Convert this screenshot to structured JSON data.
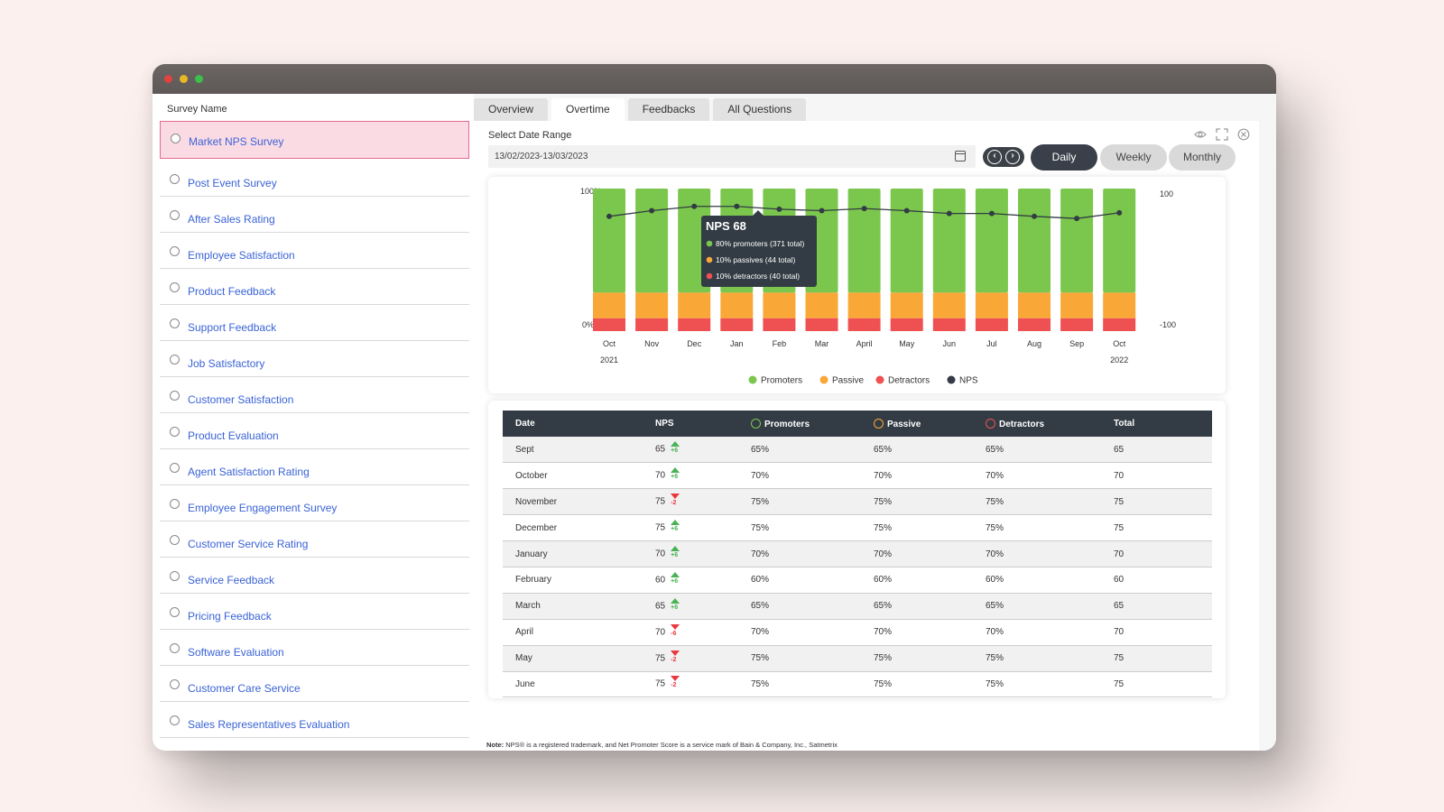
{
  "sidebar": {
    "title": "Survey Name",
    "items": [
      {
        "label": "Market NPS Survey"
      },
      {
        "label": "Post Event Survey"
      },
      {
        "label": "After Sales Rating"
      },
      {
        "label": "Employee Satisfaction"
      },
      {
        "label": "Product Feedback"
      },
      {
        "label": "Support Feedback"
      },
      {
        "label": "Job Satisfactory"
      },
      {
        "label": "Customer Satisfaction"
      },
      {
        "label": "Product Evaluation"
      },
      {
        "label": "Agent Satisfaction Rating"
      },
      {
        "label": "Employee Engagement Survey"
      },
      {
        "label": "Customer Service Rating"
      },
      {
        "label": "Service Feedback"
      },
      {
        "label": "Pricing Feedback"
      },
      {
        "label": "Software Evaluation"
      },
      {
        "label": "Customer Care Service"
      },
      {
        "label": "Sales Representatives Evaluation"
      }
    ]
  },
  "tabs": [
    {
      "label": "Overview"
    },
    {
      "label": "Overtime"
    },
    {
      "label": "Feedbacks"
    },
    {
      "label": "All Questions"
    }
  ],
  "date_range": {
    "label": "Select Date Range",
    "value": "13/02/2023-13/03/2023"
  },
  "periods": {
    "daily": "Daily",
    "weekly": "Weekly",
    "monthly": "Monthly"
  },
  "colors": {
    "promoters": "#7bc74d",
    "passive": "#f9a838",
    "detractors": "#ef5052",
    "nps": "#333c44",
    "accent_pink": "#fadbe4",
    "link_blue": "#3a63d6"
  },
  "chart_data": {
    "type": "bar",
    "stacked": true,
    "categories": [
      "Oct",
      "Nov",
      "Dec",
      "Jan",
      "Feb",
      "Mar",
      "April",
      "May",
      "Jun",
      "Jul",
      "Aug",
      "Sep",
      "Oct"
    ],
    "year_labels": [
      "2021",
      "2022"
    ],
    "series": [
      {
        "name": "Promoters",
        "values": [
          73,
          73,
          73,
          73,
          73,
          73,
          73,
          73,
          73,
          73,
          73,
          73,
          73
        ]
      },
      {
        "name": "Passive",
        "values": [
          18,
          18,
          18,
          18,
          18,
          18,
          18,
          18,
          18,
          18,
          18,
          18,
          18
        ]
      },
      {
        "name": "Detractors",
        "values": [
          9,
          9,
          9,
          9,
          9,
          9,
          9,
          9,
          9,
          9,
          9,
          9,
          9
        ]
      },
      {
        "name": "NPS",
        "type": "line",
        "values": [
          61,
          69,
          75,
          75,
          71,
          69,
          72,
          69,
          65,
          65,
          61,
          58,
          66
        ]
      }
    ],
    "ylim_left": [
      0,
      100
    ],
    "ylim_right": [
      -100,
      100
    ],
    "yticks_left": [
      "100%",
      "0%"
    ],
    "yticks_right": [
      "100",
      "-100"
    ],
    "legend": [
      "Promoters",
      "Passive",
      "Detractors",
      "NPS"
    ],
    "legend_position": "bottom",
    "tooltip": {
      "title": "NPS 68",
      "lines": [
        "80% promoters (371 total)",
        "10% passives (44 total)",
        "10% detractors (40 total)"
      ]
    }
  },
  "table": {
    "headers": [
      "Date",
      "NPS",
      "Promoters",
      "Passive",
      "Detractors",
      "Total"
    ],
    "rows": [
      {
        "date": "Sept",
        "nps": "65",
        "trend": "up",
        "delta": "+6",
        "promoters": "65%",
        "passive": "65%",
        "detractors": "65%",
        "total": "65"
      },
      {
        "date": "October",
        "nps": "70",
        "trend": "up",
        "delta": "+6",
        "promoters": "70%",
        "passive": "70%",
        "detractors": "70%",
        "total": "70"
      },
      {
        "date": "November",
        "nps": "75",
        "trend": "down",
        "delta": "-2",
        "promoters": "75%",
        "passive": "75%",
        "detractors": "75%",
        "total": "75"
      },
      {
        "date": "December",
        "nps": "75",
        "trend": "up",
        "delta": "+6",
        "promoters": "75%",
        "passive": "75%",
        "detractors": "75%",
        "total": "75"
      },
      {
        "date": "January",
        "nps": "70",
        "trend": "up",
        "delta": "+6",
        "promoters": "70%",
        "passive": "70%",
        "detractors": "70%",
        "total": "70"
      },
      {
        "date": "February",
        "nps": "60",
        "trend": "up",
        "delta": "+6",
        "promoters": "60%",
        "passive": "60%",
        "detractors": "60%",
        "total": "60"
      },
      {
        "date": "March",
        "nps": "65",
        "trend": "up",
        "delta": "+6",
        "promoters": "65%",
        "passive": "65%",
        "detractors": "65%",
        "total": "65"
      },
      {
        "date": "April",
        "nps": "70",
        "trend": "down",
        "delta": "-6",
        "promoters": "70%",
        "passive": "70%",
        "detractors": "70%",
        "total": "70"
      },
      {
        "date": "May",
        "nps": "75",
        "trend": "down",
        "delta": "-2",
        "promoters": "75%",
        "passive": "75%",
        "detractors": "75%",
        "total": "75"
      },
      {
        "date": "June",
        "nps": "75",
        "trend": "down",
        "delta": "-2",
        "promoters": "75%",
        "passive": "75%",
        "detractors": "75%",
        "total": "75"
      }
    ]
  },
  "note": {
    "label": "Note:",
    "text": "NPS® is a registered trademark, and Net Promoter Score is a service mark of  Bain & Company, Inc., Satmetrix Systems, Inc. and Fred Reichheld."
  }
}
